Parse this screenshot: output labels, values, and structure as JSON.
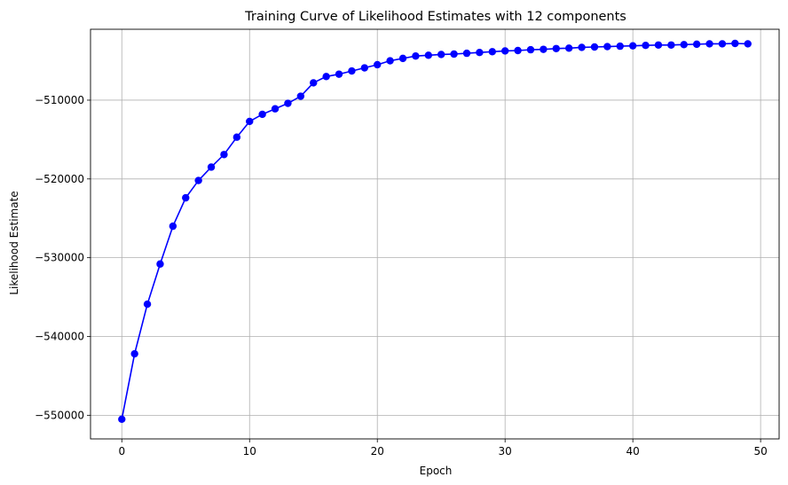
{
  "chart_data": {
    "type": "line",
    "title": "Training Curve of Likelihood Estimates with 12 components",
    "xlabel": "Epoch",
    "ylabel": "Likelihood Estimate",
    "xlim": [
      -2.45,
      51.45
    ],
    "ylim": [
      -553000,
      -501000
    ],
    "x_ticks": [
      0,
      10,
      20,
      30,
      40,
      50
    ],
    "x_tick_labels": [
      "0",
      "10",
      "20",
      "30",
      "40",
      "50"
    ],
    "y_ticks": [
      -550000,
      -540000,
      -530000,
      -520000,
      -510000
    ],
    "y_tick_labels": [
      "−550000",
      "−540000",
      "−530000",
      "−520000",
      "−510000"
    ],
    "grid": true,
    "series": [
      {
        "color": "#0000ff",
        "marker": "circle",
        "x": [
          0,
          1,
          2,
          3,
          4,
          5,
          6,
          7,
          8,
          9,
          10,
          11,
          12,
          13,
          14,
          15,
          16,
          17,
          18,
          19,
          20,
          21,
          22,
          23,
          24,
          25,
          26,
          27,
          28,
          29,
          30,
          31,
          32,
          33,
          34,
          35,
          36,
          37,
          38,
          39,
          40,
          41,
          42,
          43,
          44,
          45,
          46,
          47,
          48,
          49
        ],
        "y": [
          -550500,
          -542200,
          -535900,
          -530800,
          -526000,
          -522400,
          -520200,
          -518500,
          -516900,
          -514700,
          -512700,
          -511800,
          -511100,
          -510400,
          -509500,
          -507800,
          -507000,
          -506700,
          -506300,
          -505900,
          -505500,
          -505000,
          -504700,
          -504400,
          -504300,
          -504200,
          -504150,
          -504050,
          -503950,
          -503850,
          -503750,
          -503700,
          -503600,
          -503550,
          -503450,
          -503400,
          -503300,
          -503250,
          -503200,
          -503150,
          -503100,
          -503050,
          -503000,
          -503000,
          -502950,
          -502900,
          -502850,
          -502850,
          -502800,
          -502850
        ]
      }
    ]
  }
}
